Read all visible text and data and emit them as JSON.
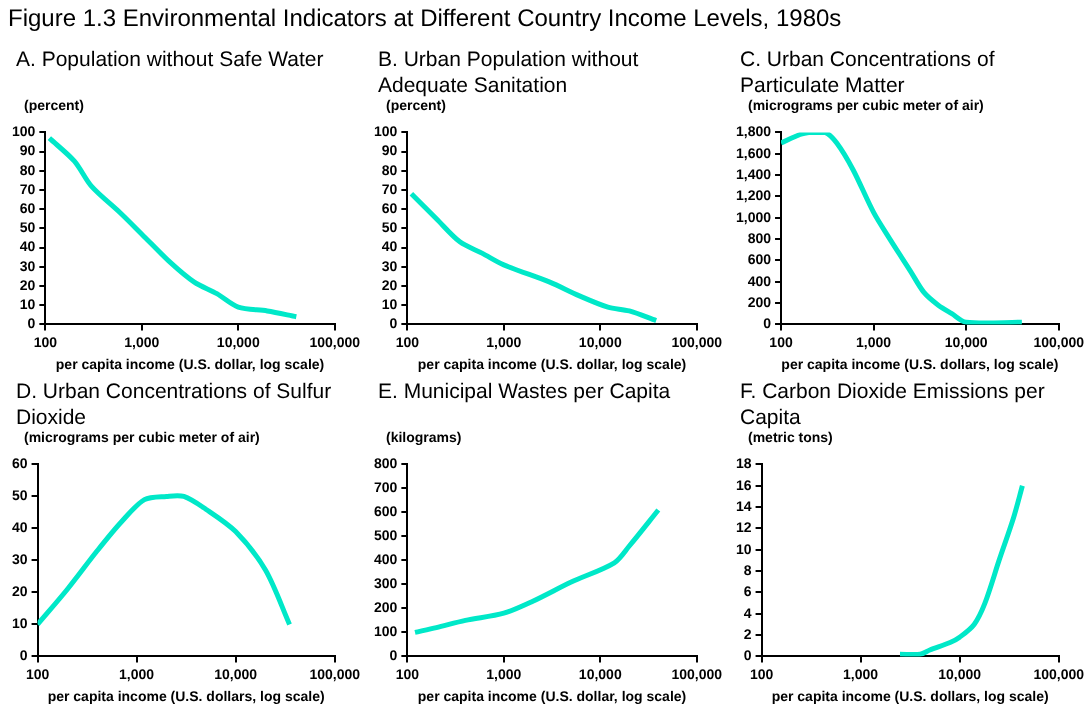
{
  "chart_data": [
    {
      "type": "other",
      "title": "Figure 1.3  Environmental Indicators at Different Country Income Levels, 1980s"
    },
    {
      "type": "line",
      "title": "A. Population without Safe Water",
      "ylabel": "(percent)",
      "xlabel": "per capita income (U.S. dollar, log scale)",
      "log": "x",
      "color": "#00e8c8",
      "x": [
        110,
        200,
        300,
        600,
        1000,
        2000,
        3500,
        6000,
        10000,
        20000,
        40000
      ],
      "values": [
        97,
        85,
        72,
        58,
        47,
        32,
        22,
        16,
        9,
        7,
        4
      ],
      "xlim": [
        100,
        100000
      ],
      "xticks": [
        {
          "value": 100,
          "label": "100"
        },
        {
          "value": 1000,
          "label": "1,000"
        },
        {
          "value": 10000,
          "label": "10,000"
        },
        {
          "value": 100000,
          "label": "100,000"
        }
      ],
      "ylim": [
        0,
        100
      ],
      "yticks": [
        0,
        10,
        20,
        30,
        40,
        50,
        60,
        70,
        80,
        90,
        100
      ]
    },
    {
      "type": "line",
      "title": "B. Urban Population without Adequate Sanitation",
      "ylabel": "(percent)",
      "xlabel": "per capita income (U.S. dollar, log scale)",
      "log": "x",
      "color": "#00e8c8",
      "x": [
        110,
        200,
        350,
        600,
        1000,
        3000,
        6000,
        12000,
        20000,
        38000
      ],
      "values": [
        68,
        55,
        43,
        37,
        31,
        22,
        15,
        9,
        7,
        2
      ],
      "xlim": [
        100,
        100000
      ],
      "xticks": [
        {
          "value": 100,
          "label": "100"
        },
        {
          "value": 1000,
          "label": "1,000"
        },
        {
          "value": 10000,
          "label": "10,000"
        },
        {
          "value": 100000,
          "label": "100,000"
        }
      ],
      "ylim": [
        0,
        100
      ],
      "yticks": [
        0,
        10,
        20,
        30,
        40,
        50,
        60,
        70,
        80,
        90,
        100
      ]
    },
    {
      "type": "line",
      "title": "C. Urban Concentrations of Particulate Matter",
      "ylabel": "(micrograms per cubic meter of air)",
      "xlabel": "per capita income (U.S. dollars, log scale)",
      "log": "x",
      "color": "#00e8c8",
      "x": [
        100,
        160,
        200,
        300,
        400,
        600,
        1000,
        1500,
        2500,
        3500,
        5000,
        7000,
        10000,
        40000
      ],
      "values": [
        1700,
        1780,
        1800,
        1800,
        1700,
        1450,
        1050,
        800,
        500,
        300,
        180,
        100,
        20,
        20
      ],
      "xlim": [
        100,
        100000
      ],
      "xticks": [
        {
          "value": 100,
          "label": "100"
        },
        {
          "value": 1000,
          "label": "1,000"
        },
        {
          "value": 10000,
          "label": "10,000"
        },
        {
          "value": 100000,
          "label": "100,000"
        }
      ],
      "ylim": [
        0,
        1800
      ],
      "yticks": [
        0,
        200,
        400,
        600,
        800,
        {
          "value": 1000,
          "label": "1,000"
        },
        {
          "value": 1200,
          "label": "1,200"
        },
        {
          "value": 1400,
          "label": "1,400"
        },
        {
          "value": 1600,
          "label": "1,600"
        },
        {
          "value": 1800,
          "label": "1,800"
        }
      ]
    },
    {
      "type": "line",
      "title": "D. Urban Concentrations of Sulfur Dioxide",
      "ylabel": "(micrograms per cubic meter of air)",
      "xlabel": "per capita income (U.S. dollars, log scale)",
      "log": "x",
      "color": "#00e8c8",
      "x": [
        100,
        200,
        400,
        700,
        1200,
        2000,
        3000,
        5000,
        10000,
        20000,
        35000
      ],
      "values": [
        10,
        21,
        33,
        42,
        49,
        50,
        50,
        46,
        39,
        27,
        10
      ],
      "xlim": [
        100,
        100000
      ],
      "xticks": [
        {
          "value": 100,
          "label": "100"
        },
        {
          "value": 1000,
          "label": "1,000"
        },
        {
          "value": 10000,
          "label": "10,000"
        },
        {
          "value": 100000,
          "label": "100,000"
        }
      ],
      "ylim": [
        0,
        60
      ],
      "yticks": [
        0,
        10,
        20,
        30,
        40,
        50,
        60
      ]
    },
    {
      "type": "line",
      "title": "E. Municipal Wastes per Capita",
      "ylabel": "(kilograms)",
      "xlabel": "per capita income (U.S. dollar, log scale)",
      "log": "x",
      "color": "#00e8c8",
      "x": [
        120,
        200,
        400,
        1000,
        2000,
        5000,
        14000,
        20000,
        40000
      ],
      "values": [
        100,
        120,
        150,
        180,
        230,
        310,
        390,
        460,
        610
      ],
      "xlim": [
        100,
        100000
      ],
      "xticks": [
        {
          "value": 100,
          "label": "100"
        },
        {
          "value": 1000,
          "label": "1,000"
        },
        {
          "value": 10000,
          "label": "10,000"
        },
        {
          "value": 100000,
          "label": "100,000"
        }
      ],
      "ylim": [
        0,
        800
      ],
      "yticks": [
        0,
        100,
        200,
        300,
        400,
        500,
        600,
        700,
        800
      ]
    },
    {
      "type": "line",
      "title": "F. Carbon Dioxide Emissions per Capita",
      "ylabel": "(metric tons)",
      "xlabel": "per capita income (U.S. dollars, log scale)",
      "log": "x",
      "color": "#00e8c8",
      "x": [
        2500,
        4000,
        5000,
        8000,
        10000,
        14000,
        18000,
        25000,
        35000,
        43000
      ],
      "values": [
        0.2,
        0.2,
        0.6,
        1.3,
        1.8,
        3,
        5,
        9,
        13,
        16
      ],
      "xlim": [
        100,
        100000
      ],
      "xticks": [
        {
          "value": 100,
          "label": "100"
        },
        {
          "value": 1000,
          "label": "1,000"
        },
        {
          "value": 10000,
          "label": "10,000"
        },
        {
          "value": 100000,
          "label": "100,000"
        }
      ],
      "ylim": [
        0,
        18
      ],
      "yticks": [
        0,
        2,
        4,
        6,
        8,
        10,
        12,
        14,
        16,
        18
      ]
    }
  ]
}
